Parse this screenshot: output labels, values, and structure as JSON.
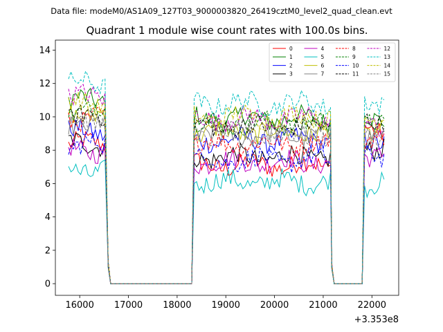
{
  "header": {
    "data_file": "Data file: modeM0/AS1A09_127T03_9000003820_26419cztM0_level2_quad_clean.evt"
  },
  "chart_data": {
    "type": "line",
    "title": "Quadrant 1 module wise count rates with 100.0s bins.",
    "xlabel": "",
    "ylabel": "",
    "x_offset_label": "+3.353e8",
    "xlim": [
      15500,
      22550
    ],
    "ylim": [
      -0.7,
      14.6
    ],
    "xticks": [
      16000,
      17000,
      18000,
      19000,
      20000,
      21000,
      22000
    ],
    "yticks": [
      0,
      2,
      4,
      6,
      8,
      10,
      12,
      14
    ],
    "grid": false,
    "legend": {
      "placement": "top-right",
      "columns": 4
    },
    "segments": [
      {
        "x_start": 15770,
        "x_end": 16560
      },
      {
        "x_start": 18350,
        "x_end": 21150
      },
      {
        "x_start": 21850,
        "x_end": 22290
      }
    ],
    "series": [
      {
        "name": "0",
        "color": "#ff0000",
        "dash": "solid",
        "levels": [
          8.4,
          7.1,
          9.2
        ]
      },
      {
        "name": "1",
        "color": "#008000",
        "dash": "solid",
        "levels": [
          11.0,
          9.9,
          10.0
        ]
      },
      {
        "name": "2",
        "color": "#0000ff",
        "dash": "solid",
        "levels": [
          9.1,
          8.6,
          8.6
        ]
      },
      {
        "name": "3",
        "color": "#000000",
        "dash": "solid",
        "levels": [
          8.4,
          7.6,
          8.2
        ]
      },
      {
        "name": "4",
        "color": "#bf00bf",
        "dash": "solid",
        "levels": [
          8.0,
          7.3,
          7.8
        ]
      },
      {
        "name": "5",
        "color": "#00bfbf",
        "dash": "solid",
        "levels": [
          6.8,
          6.1,
          6.0
        ]
      },
      {
        "name": "6",
        "color": "#bfbf00",
        "dash": "solid",
        "levels": [
          10.2,
          9.1,
          9.0
        ]
      },
      {
        "name": "7",
        "color": "#808080",
        "dash": "solid",
        "levels": [
          9.6,
          8.9,
          8.8
        ]
      },
      {
        "name": "8",
        "color": "#ff0000",
        "dash": "dashed",
        "levels": [
          9.9,
          8.4,
          8.5
        ]
      },
      {
        "name": "9",
        "color": "#008000",
        "dash": "dashed",
        "levels": [
          10.4,
          9.6,
          9.4
        ]
      },
      {
        "name": "10",
        "color": "#0000ff",
        "dash": "dashed",
        "levels": [
          8.3,
          7.4,
          7.5
        ]
      },
      {
        "name": "11",
        "color": "#000000",
        "dash": "dashed",
        "levels": [
          10.0,
          9.4,
          9.6
        ]
      },
      {
        "name": "12",
        "color": "#bf00bf",
        "dash": "dashed",
        "levels": [
          11.2,
          9.9,
          9.5
        ]
      },
      {
        "name": "13",
        "color": "#00bfbf",
        "dash": "dashed",
        "levels": [
          12.0,
          10.8,
          10.9
        ]
      },
      {
        "name": "14",
        "color": "#bfbf00",
        "dash": "dashed",
        "levels": [
          10.8,
          10.0,
          10.0
        ]
      },
      {
        "name": "15",
        "color": "#808080",
        "dash": "dashed",
        "levels": [
          9.8,
          8.9,
          9.0
        ]
      }
    ]
  }
}
